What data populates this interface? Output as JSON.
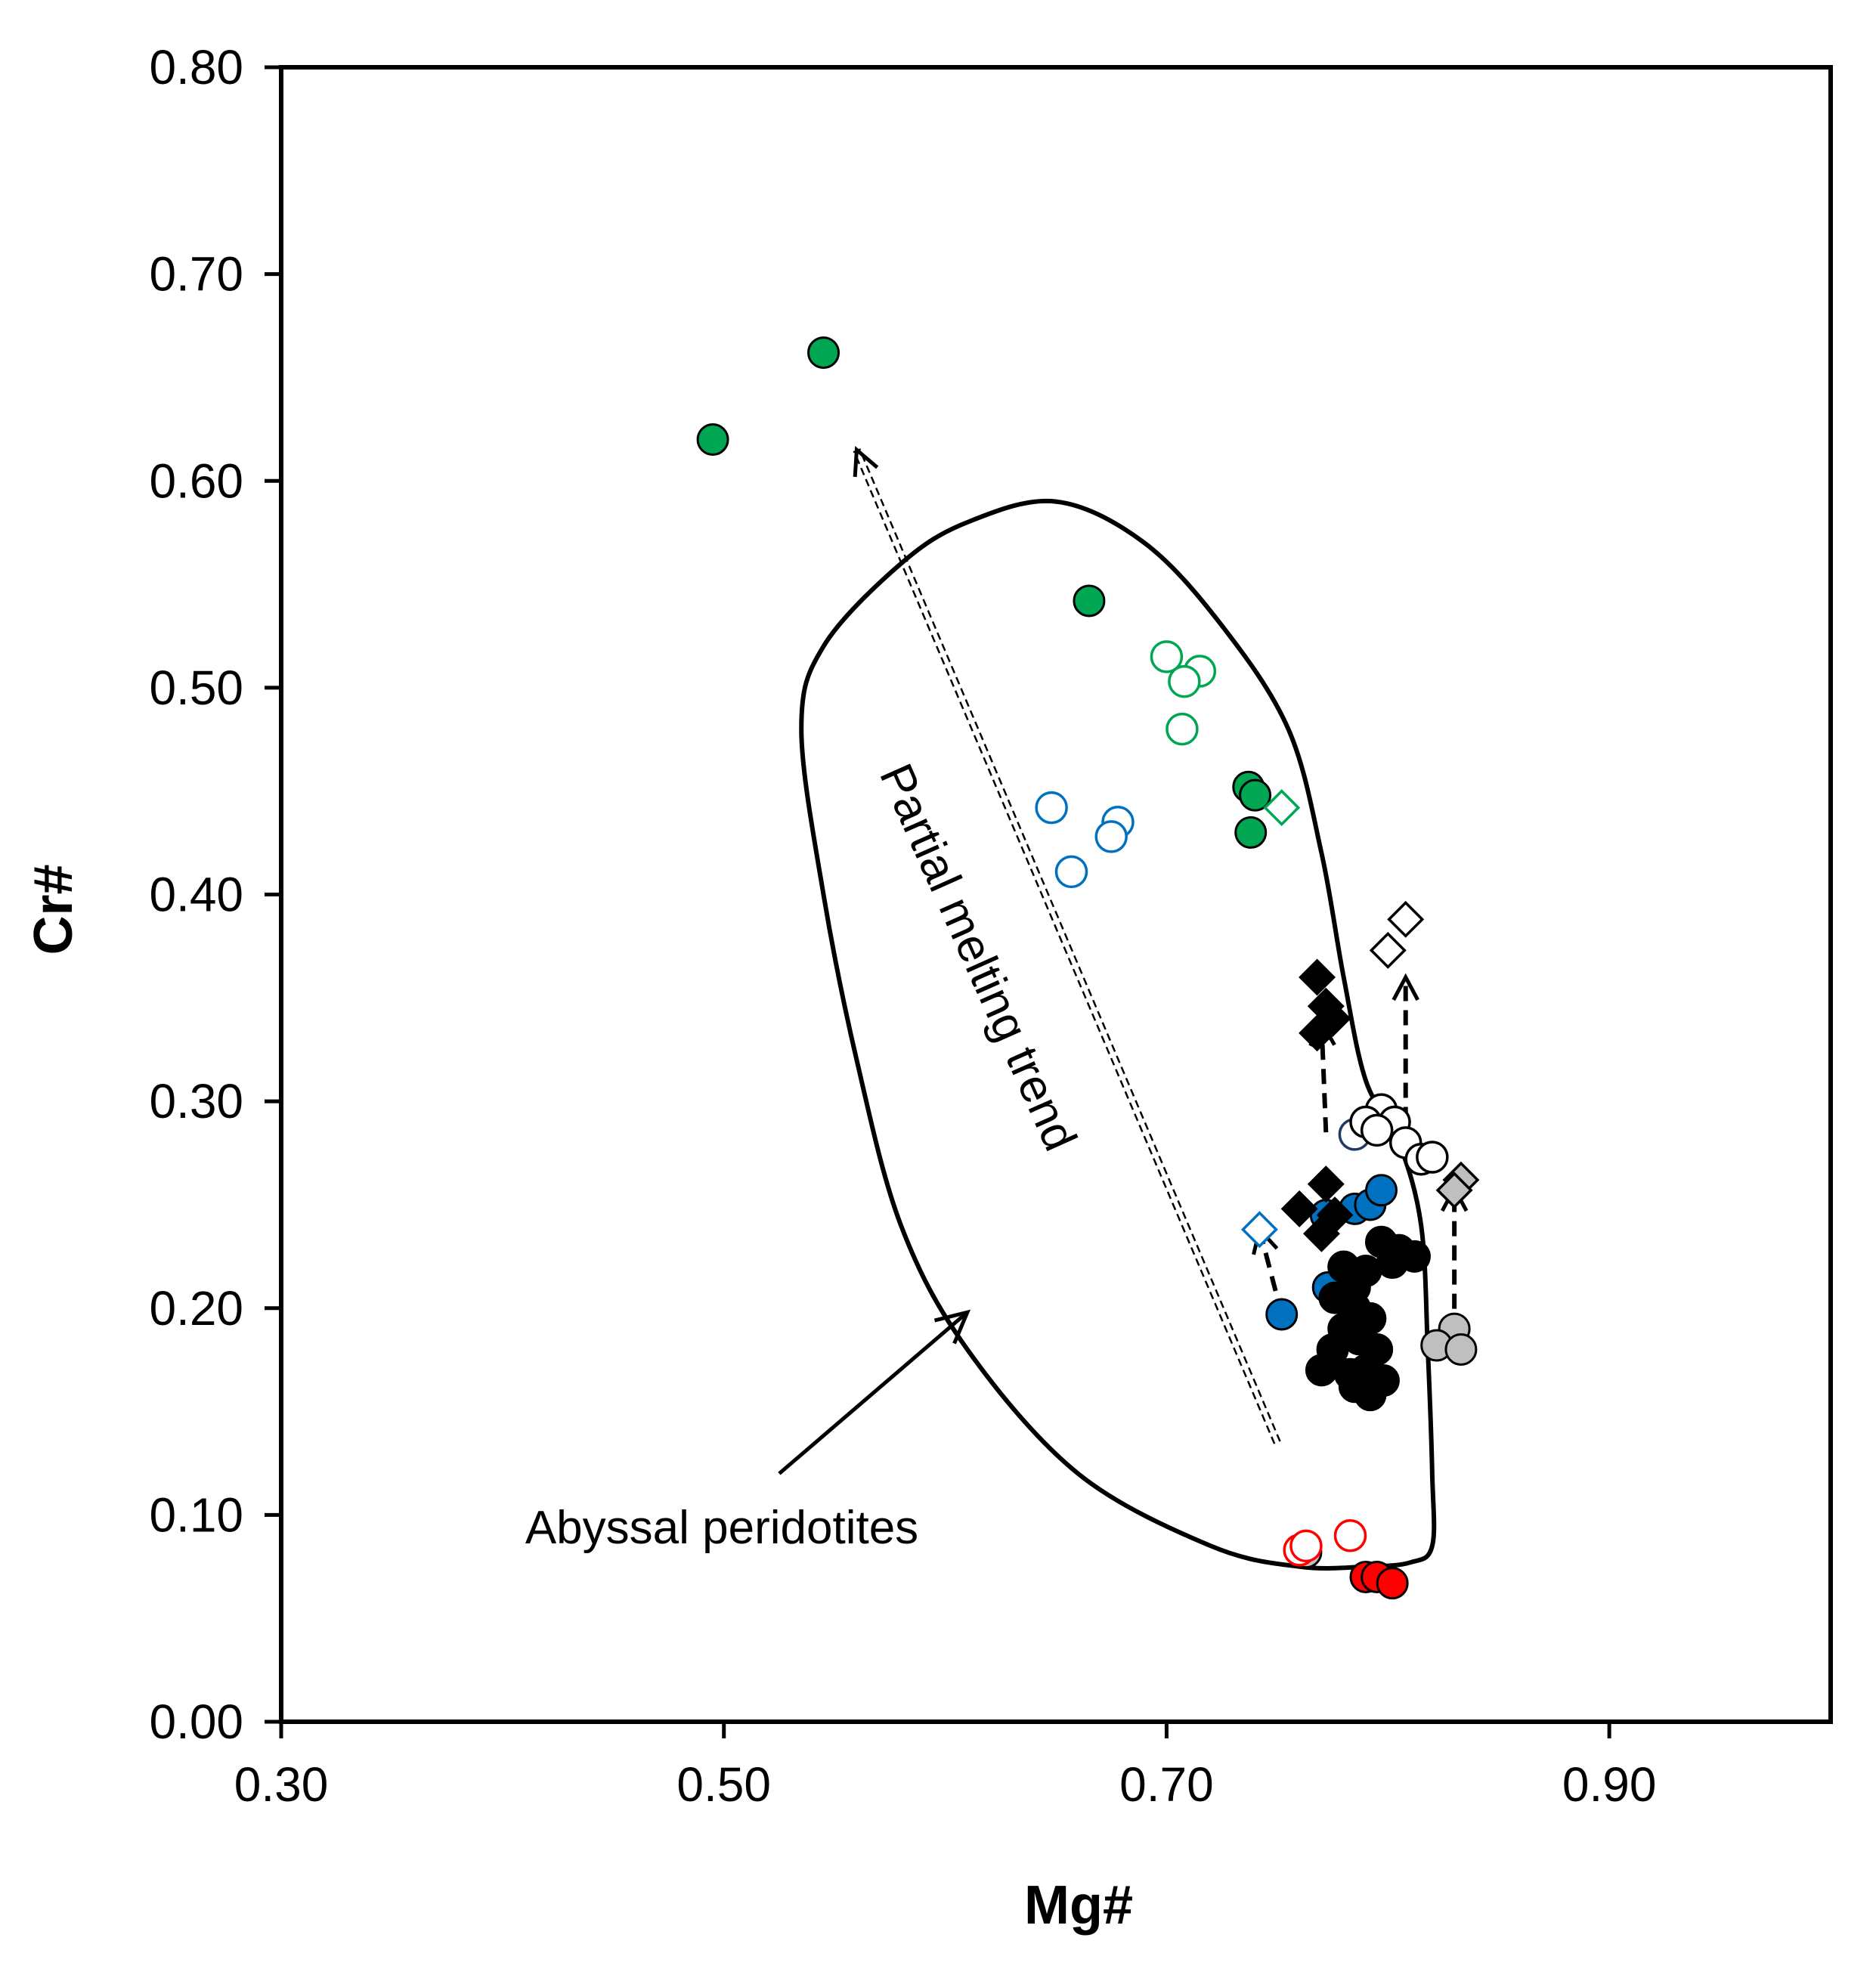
{
  "chart_data": {
    "type": "scatter",
    "title": "",
    "xlabel": "Mg#",
    "ylabel": "Cr#",
    "xlim": [
      0.3,
      1.0
    ],
    "ylim": [
      0.0,
      0.8
    ],
    "xticks": [
      0.3,
      0.5,
      0.7,
      0.9
    ],
    "xtick_labels": [
      "0.30",
      "0.50",
      "0.70",
      "0.90"
    ],
    "yticks": [
      0.0,
      0.1,
      0.2,
      0.3,
      0.4,
      0.5,
      0.6,
      0.7,
      0.8
    ],
    "ytick_labels": [
      "0.00",
      "0.10",
      "0.20",
      "0.30",
      "0.40",
      "0.50",
      "0.60",
      "0.70",
      "0.80"
    ],
    "grid": false,
    "colors": {
      "green": "#00a651",
      "blue": "#0070c0",
      "red": "#ff0000",
      "black": "#000000",
      "gray": "#bfbfbf",
      "white": "#ffffff",
      "edge": "#000000"
    },
    "annotations": {
      "partial_melting_label": "Partial melting trend",
      "abyssal_label": "Abyssal peridotites"
    },
    "field_outline": {
      "name": "Abyssal peridotites",
      "points": [
        [
          0.65,
          0.59
        ],
        [
          0.69,
          0.57
        ],
        [
          0.725,
          0.53
        ],
        [
          0.755,
          0.48
        ],
        [
          0.77,
          0.42
        ],
        [
          0.78,
          0.36
        ],
        [
          0.79,
          0.31
        ],
        [
          0.805,
          0.28
        ],
        [
          0.815,
          0.24
        ],
        [
          0.818,
          0.18
        ],
        [
          0.82,
          0.12
        ],
        [
          0.82,
          0.085
        ],
        [
          0.81,
          0.077
        ],
        [
          0.79,
          0.075
        ],
        [
          0.76,
          0.075
        ],
        [
          0.72,
          0.085
        ],
        [
          0.66,
          0.12
        ],
        [
          0.61,
          0.18
        ],
        [
          0.58,
          0.24
        ],
        [
          0.56,
          0.32
        ],
        [
          0.545,
          0.4
        ],
        [
          0.535,
          0.48
        ],
        [
          0.545,
          0.52
        ],
        [
          0.58,
          0.56
        ],
        [
          0.61,
          0.58
        ],
        [
          0.65,
          0.59
        ]
      ]
    },
    "trend_arrow": {
      "from": [
        0.75,
        0.135
      ],
      "to": [
        0.56,
        0.615
      ]
    },
    "label_arrow": {
      "from": [
        0.525,
        0.12
      ],
      "to": [
        0.61,
        0.198
      ]
    },
    "dashed_arrows": [
      {
        "from": [
          0.752,
          0.197
        ],
        "to": [
          0.742,
          0.238
        ]
      },
      {
        "from": [
          0.772,
          0.285
        ],
        "to": [
          0.77,
          0.338
        ]
      },
      {
        "from": [
          0.808,
          0.29
        ],
        "to": [
          0.808,
          0.36
        ]
      },
      {
        "from": [
          0.83,
          0.188
        ],
        "to": [
          0.83,
          0.258
        ]
      }
    ],
    "series": [
      {
        "name": "green-filled-circle",
        "marker": "circle",
        "fill": "green",
        "stroke": "edge",
        "points": [
          [
            0.495,
            0.62
          ],
          [
            0.545,
            0.662
          ],
          [
            0.665,
            0.542
          ],
          [
            0.737,
            0.452
          ],
          [
            0.74,
            0.448
          ],
          [
            0.738,
            0.43
          ]
        ]
      },
      {
        "name": "green-open-circle",
        "marker": "circle",
        "fill": "white",
        "stroke": "green",
        "points": [
          [
            0.7,
            0.515
          ],
          [
            0.715,
            0.508
          ],
          [
            0.708,
            0.503
          ],
          [
            0.707,
            0.48
          ]
        ]
      },
      {
        "name": "green-open-diamond",
        "marker": "diamond",
        "fill": "white",
        "stroke": "green",
        "points": [
          [
            0.752,
            0.442
          ]
        ]
      },
      {
        "name": "blue-open-circle",
        "marker": "circle",
        "fill": "white",
        "stroke": "blue",
        "points": [
          [
            0.648,
            0.442
          ],
          [
            0.678,
            0.435
          ],
          [
            0.675,
            0.428
          ],
          [
            0.657,
            0.411
          ]
        ]
      },
      {
        "name": "navy-open-circle",
        "marker": "circle",
        "fill": "white",
        "stroke": "#1f3864",
        "points": [
          [
            0.785,
            0.284
          ]
        ]
      },
      {
        "name": "blue-filled-circle",
        "marker": "circle",
        "fill": "blue",
        "stroke": "edge",
        "points": [
          [
            0.752,
            0.197
          ],
          [
            0.773,
            0.21
          ],
          [
            0.785,
            0.248
          ],
          [
            0.792,
            0.25
          ],
          [
            0.797,
            0.257
          ],
          [
            0.772,
            0.245
          ]
        ]
      },
      {
        "name": "blue-open-diamond",
        "marker": "diamond",
        "fill": "white",
        "stroke": "blue",
        "points": [
          [
            0.742,
            0.238
          ]
        ]
      },
      {
        "name": "black-filled-circle",
        "marker": "circle",
        "fill": "black",
        "stroke": "edge",
        "points": [
          [
            0.78,
            0.22
          ],
          [
            0.785,
            0.21
          ],
          [
            0.79,
            0.218
          ],
          [
            0.776,
            0.205
          ],
          [
            0.785,
            0.2
          ],
          [
            0.792,
            0.195
          ],
          [
            0.78,
            0.19
          ],
          [
            0.787,
            0.185
          ],
          [
            0.795,
            0.18
          ],
          [
            0.775,
            0.18
          ],
          [
            0.77,
            0.17
          ],
          [
            0.783,
            0.168
          ],
          [
            0.79,
            0.17
          ],
          [
            0.798,
            0.165
          ],
          [
            0.785,
            0.162
          ],
          [
            0.792,
            0.158
          ],
          [
            0.797,
            0.232
          ],
          [
            0.805,
            0.228
          ],
          [
            0.812,
            0.225
          ],
          [
            0.802,
            0.222
          ]
        ]
      },
      {
        "name": "black-filled-diamond",
        "marker": "diamond",
        "fill": "black",
        "stroke": "edge",
        "points": [
          [
            0.768,
            0.36
          ],
          [
            0.772,
            0.346
          ],
          [
            0.775,
            0.34
          ],
          [
            0.768,
            0.333
          ],
          [
            0.772,
            0.26
          ],
          [
            0.76,
            0.248
          ],
          [
            0.776,
            0.245
          ],
          [
            0.77,
            0.236
          ]
        ]
      },
      {
        "name": "white-open-circle",
        "marker": "circle",
        "fill": "white",
        "stroke": "edge",
        "points": [
          [
            0.797,
            0.296
          ],
          [
            0.803,
            0.29
          ],
          [
            0.79,
            0.29
          ],
          [
            0.795,
            0.286
          ],
          [
            0.808,
            0.28
          ],
          [
            0.815,
            0.272
          ],
          [
            0.82,
            0.273
          ]
        ]
      },
      {
        "name": "white-open-diamond",
        "marker": "diamond",
        "fill": "white",
        "stroke": "edge",
        "points": [
          [
            0.808,
            0.388
          ],
          [
            0.8,
            0.373
          ]
        ]
      },
      {
        "name": "gray-filled-diamond",
        "marker": "diamond",
        "fill": "gray",
        "stroke": "edge",
        "points": [
          [
            0.833,
            0.262
          ],
          [
            0.83,
            0.257
          ]
        ]
      },
      {
        "name": "gray-filled-circle",
        "marker": "circle",
        "fill": "gray",
        "stroke": "edge",
        "points": [
          [
            0.83,
            0.19
          ],
          [
            0.822,
            0.182
          ],
          [
            0.833,
            0.18
          ],
          [
            0.763,
            0.082
          ]
        ]
      },
      {
        "name": "red-filled-circle",
        "marker": "circle",
        "fill": "red",
        "stroke": "edge",
        "points": [
          [
            0.79,
            0.07
          ],
          [
            0.795,
            0.07
          ],
          [
            0.802,
            0.067
          ]
        ]
      },
      {
        "name": "red-open-circle",
        "marker": "circle",
        "fill": "white",
        "stroke": "red",
        "points": [
          [
            0.76,
            0.083
          ],
          [
            0.763,
            0.085
          ],
          [
            0.783,
            0.09
          ]
        ]
      }
    ]
  }
}
